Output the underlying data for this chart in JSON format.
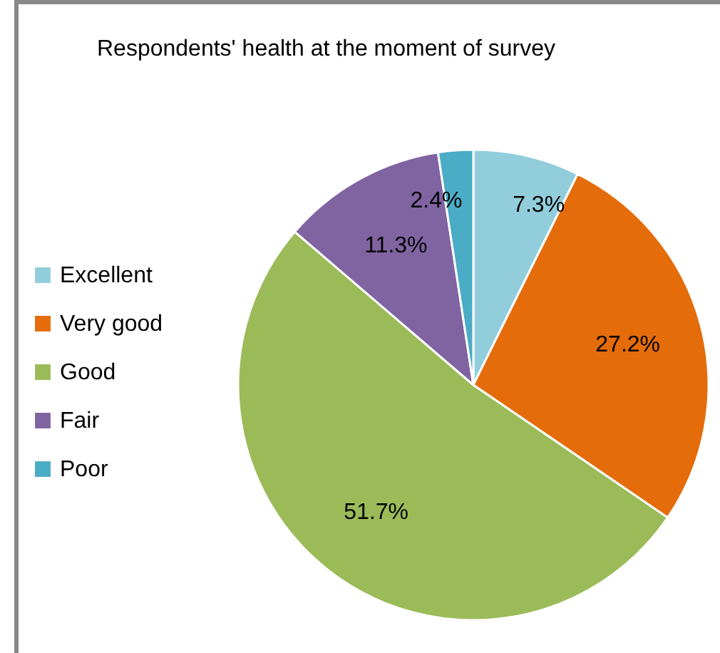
{
  "chart_data": {
    "type": "pie",
    "title": "Respondents' health at the moment of survey",
    "categories": [
      "Excellent",
      "Very good",
      "Good",
      "Fair",
      "Poor"
    ],
    "values": [
      7.3,
      27.2,
      51.7,
      11.3,
      2.4
    ],
    "colors": [
      "#92cddc",
      "#e46c0a",
      "#9bbb59",
      "#8064a2",
      "#4bacc6"
    ],
    "value_labels": [
      "7.3%",
      "27.2%",
      "51.7%",
      "11.3%",
      "2.4%"
    ],
    "legend": "left"
  }
}
